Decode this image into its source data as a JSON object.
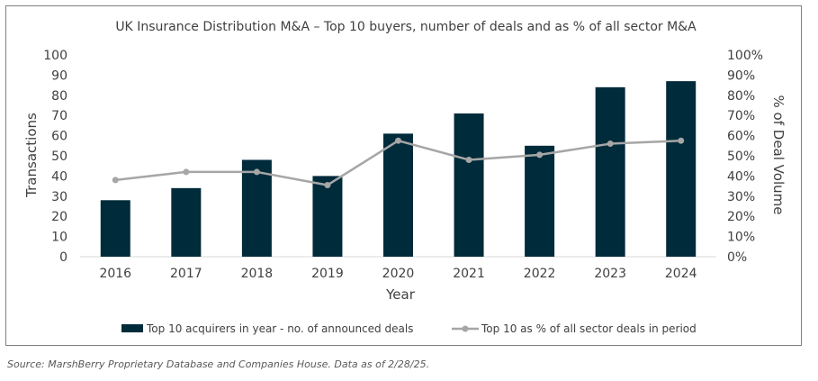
{
  "chart_data": {
    "type": "bar",
    "title": "UK Insurance Distribution M&A – Top 10 buyers, number of deals and as % of all sector M&A",
    "xlabel": "Year",
    "ylabel": "Transactions",
    "y2label": "% of Deal Volume",
    "categories": [
      "2016",
      "2017",
      "2018",
      "2019",
      "2020",
      "2021",
      "2022",
      "2023",
      "2024"
    ],
    "ylim": [
      0,
      100
    ],
    "y2lim": [
      0,
      100
    ],
    "yticks": [
      "0",
      "10",
      "20",
      "30",
      "40",
      "50",
      "60",
      "70",
      "80",
      "90",
      "100"
    ],
    "y2ticks": [
      "0%",
      "10%",
      "20%",
      "30%",
      "40%",
      "50%",
      "60%",
      "70%",
      "80%",
      "90%",
      "100%"
    ],
    "grid": false,
    "legend_position": "bottom",
    "series": [
      {
        "name": "Top 10 acquirers in year - no. of announced deals",
        "type": "bar",
        "axis": "left",
        "color": "#002b3a",
        "values": [
          28,
          34,
          48,
          40,
          61,
          71,
          55,
          84,
          87
        ]
      },
      {
        "name": "Top 10 as % of all sector deals in period",
        "type": "line",
        "axis": "right",
        "color": "#a6a6a6",
        "values": [
          38,
          42,
          42,
          35.5,
          57.5,
          48,
          50.5,
          56,
          57.5
        ]
      }
    ]
  },
  "source": "Source: MarshBerry Proprietary Database and Companies House. Data as of 2/28/25."
}
